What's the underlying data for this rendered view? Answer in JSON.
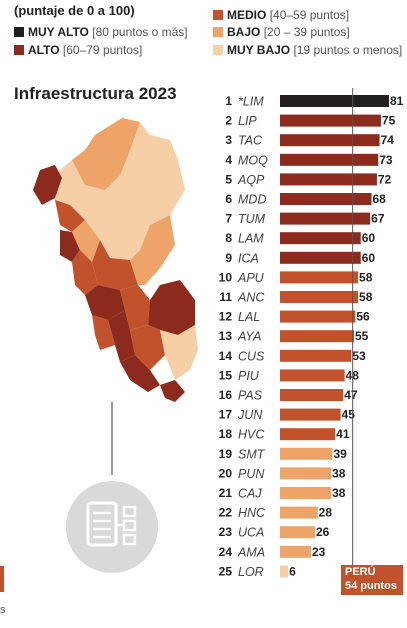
{
  "legend": {
    "scale_note": "(puntaje de 0 a 100)",
    "categories": [
      {
        "label": "MUY ALTO",
        "range": "[80 puntos o más]",
        "color": "#231f20"
      },
      {
        "label": "ALTO",
        "range": "[60–79 puntos]",
        "color": "#8b2a1d"
      },
      {
        "label": "MEDIO",
        "range": "[40–59 puntos]",
        "color": "#c1522b"
      },
      {
        "label": "BAJO",
        "range": "[20 – 39 puntos]",
        "color": "#eea468"
      },
      {
        "label": "MUY BAJO",
        "range": "[19 puntos o menos]",
        "color": "#f7cfa6"
      }
    ]
  },
  "chart_data": {
    "type": "bar",
    "title": "Infraestructura 2023",
    "orientation": "horizontal",
    "ranks": [
      "1",
      "2",
      "3",
      "4",
      "5",
      "6",
      "7",
      "8",
      "9",
      "10",
      "11",
      "12",
      "13",
      "14",
      "15",
      "16",
      "17",
      "18",
      "19",
      "20",
      "21",
      "22",
      "23",
      "24",
      "25"
    ],
    "categories": [
      "*LIM",
      "LIP",
      "TAC",
      "MOQ",
      "AQP",
      "MDD",
      "TUM",
      "LAM",
      "ICA",
      "APU",
      "ANC",
      "LAL",
      "AYA",
      "CUS",
      "PIU",
      "PAS",
      "JUN",
      "HVC",
      "SMT",
      "PUN",
      "CAJ",
      "HNC",
      "UCA",
      "AMA",
      "LOR"
    ],
    "values": [
      81,
      75,
      74,
      73,
      72,
      68,
      67,
      60,
      60,
      58,
      58,
      56,
      55,
      53,
      48,
      47,
      45,
      41,
      39,
      38,
      38,
      28,
      26,
      23,
      6
    ],
    "xlim": [
      0,
      81
    ],
    "reference_line": {
      "value": 54,
      "label_line1": "PERÚ",
      "label_line2": "54 puntos"
    }
  },
  "left_edge_text": "s"
}
